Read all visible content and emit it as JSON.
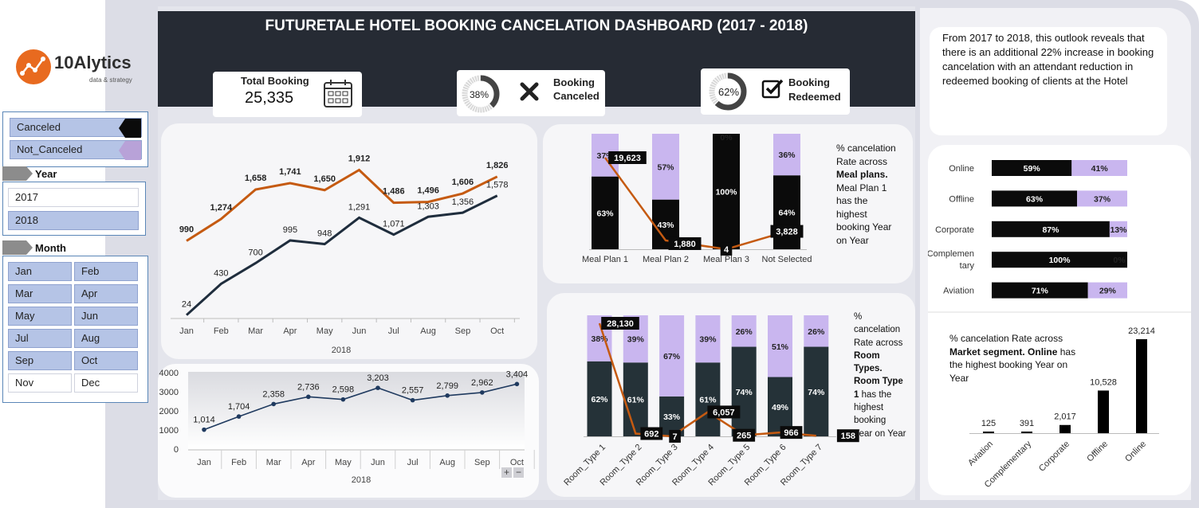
{
  "title": "FUTURETALE HOTEL BOOKING CANCELATION DASHBOARD (2017 - 2018)",
  "logo": {
    "text": "10Alytics",
    "tagline": "data & strategy"
  },
  "legend": {
    "items": [
      "Canceled",
      "Not_Canceled"
    ]
  },
  "year_slicer": {
    "header": "Year",
    "items": [
      "2017",
      "2018"
    ],
    "selected": [
      "2018"
    ]
  },
  "month_slicer": {
    "header": "Month",
    "items": [
      "Jan",
      "Feb",
      "Mar",
      "Apr",
      "May",
      "Jun",
      "Jul",
      "Aug",
      "Sep",
      "Oct",
      "Nov",
      "Dec"
    ],
    "selected": [
      "Jan",
      "Feb",
      "Mar",
      "Apr",
      "May",
      "Jun",
      "Jul",
      "Aug",
      "Sep",
      "Oct"
    ]
  },
  "kpis": {
    "total": {
      "label": "Total Booking",
      "value": "25,335"
    },
    "canceled": {
      "pct": "38%",
      "pct_value": 0.38,
      "label_line1": "Booking",
      "label_line2": "Canceled"
    },
    "redeemed": {
      "pct": "62%",
      "pct_value": 0.62,
      "label_line1": "Booking",
      "label_line2": "Redeemed"
    }
  },
  "insight": "From 2017 to 2018, this outlook reveals that there is an additional 22% increase in booking cancelation with an attendant reduction in redeemed booking of clients at the Hotel",
  "meal_note": {
    "line1": "% cancelation",
    "line2": "Rate across",
    "bold": "Meal plans.",
    "rest": [
      "Meal Plan 1",
      "has the",
      "highest",
      "booking Year",
      "on Year"
    ]
  },
  "room_note": {
    "lines": [
      "%",
      "cancelation",
      "Rate across"
    ],
    "bold1": [
      "Room",
      "Types."
    ],
    "bold2": [
      "Room Type",
      "1"
    ],
    "rest": [
      "has the",
      "highest",
      "booking",
      "Year on Year"
    ]
  },
  "market_note": {
    "line1": "% cancelation Rate across",
    "bold1": "Market segment.",
    "bold2": "Online",
    "line2a": " has",
    "line3": "the highest booking Year on",
    "line4": "Year"
  },
  "colors": {
    "canceled": "#0b0b0b",
    "not_canceled": "#c9b6ef",
    "room_dark": "#253238",
    "orange": "#c55a11",
    "navy": "#1f2d3d"
  },
  "chart_data": [
    {
      "id": "monthly-lines",
      "type": "line",
      "categories": [
        "Jan",
        "Feb",
        "Mar",
        "Apr",
        "May",
        "Jun",
        "Jul",
        "Aug",
        "Sep",
        "Oct"
      ],
      "xlabel": "2018",
      "series": [
        {
          "color": "#c55a11",
          "values": [
            990,
            1274,
            1658,
            1741,
            1650,
            1912,
            1486,
            1496,
            1606,
            1826
          ]
        },
        {
          "color": "#1f2d3d",
          "values": [
            24,
            430,
            700,
            995,
            948,
            1291,
            1071,
            1303,
            1356,
            1578
          ]
        }
      ]
    },
    {
      "id": "monthly-total",
      "type": "line",
      "categories": [
        "Jan",
        "Feb",
        "Mar",
        "Apr",
        "May",
        "Jun",
        "Jul",
        "Aug",
        "Sep",
        "Oct"
      ],
      "xlabel": "2018",
      "ylim": [
        0,
        4000
      ],
      "yticks": [
        "0",
        "1000",
        "2000",
        "3000",
        "4000"
      ],
      "values": [
        1014,
        1704,
        2358,
        2736,
        2598,
        3203,
        2557,
        2799,
        2962,
        3404
      ],
      "labels": [
        "1,014",
        "1,704",
        "2,358",
        "2,736",
        "2,598",
        "3,203",
        "2,557",
        "2,799",
        "2,962",
        "3,404"
      ]
    },
    {
      "id": "meal-plans",
      "type": "bar",
      "stacked_percent": true,
      "categories": [
        "Meal Plan 1",
        "Meal Plan 2",
        "Meal Plan 3",
        "Not Selected"
      ],
      "series": [
        {
          "name": "Canceled",
          "values": [
            63,
            43,
            100,
            64
          ]
        },
        {
          "name": "Not_Canceled",
          "values": [
            37,
            57,
            0,
            36
          ]
        }
      ],
      "line": {
        "values": [
          19623,
          1880,
          4,
          3828
        ],
        "labels": [
          "19,623",
          "1,880",
          "4",
          "3,828"
        ]
      }
    },
    {
      "id": "room-types",
      "type": "bar",
      "stacked_percent": true,
      "categories": [
        "Room_Type 1",
        "Room_Type 2",
        "Room_Type 3",
        "Room_Type 4",
        "Room_Type 5",
        "Room_Type 6",
        "Room_Type 7"
      ],
      "series": [
        {
          "name": "Canceled",
          "values": [
            62,
            61,
            33,
            61,
            74,
            49,
            74
          ]
        },
        {
          "name": "Not_Canceled",
          "values": [
            38,
            39,
            67,
            39,
            26,
            51,
            26
          ]
        }
      ],
      "line": {
        "values": [
          28130,
          692,
          7,
          6057,
          265,
          966,
          158
        ],
        "labels": [
          "28,130",
          "692",
          "7",
          "6,057",
          "265",
          "966",
          "158"
        ]
      }
    },
    {
      "id": "market-segment-pct",
      "type": "bar",
      "orientation": "horizontal",
      "stacked_percent": true,
      "categories": [
        "Online",
        "Offline",
        "Corporate",
        "Complementary",
        "Aviation"
      ],
      "series": [
        {
          "name": "Canceled",
          "values": [
            59,
            63,
            87,
            100,
            71
          ]
        },
        {
          "name": "Not_Canceled",
          "values": [
            41,
            37,
            13,
            0,
            29
          ]
        }
      ]
    },
    {
      "id": "market-segment-count",
      "type": "bar",
      "categories": [
        "Aviation",
        "Complementary",
        "Corporate",
        "Offline",
        "Online"
      ],
      "values": [
        125,
        391,
        2017,
        10528,
        23214
      ],
      "labels": [
        "125",
        "391",
        "2,017",
        "10,528",
        "23,214"
      ]
    }
  ]
}
